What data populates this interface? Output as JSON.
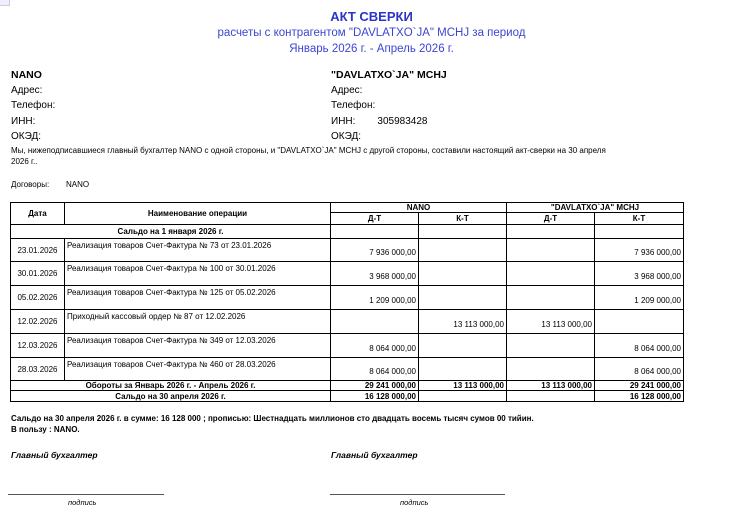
{
  "title": "АКТ СВЕРКИ",
  "subtitle1": "расчеты с контрагентом \"DAVLATXO`JA\" MCHJ за период",
  "subtitle2": "Январь 2026 г. - Апрель 2026 г.",
  "left_party": {
    "name": "NANO",
    "address": "Адрес:",
    "phone": "Телефон:",
    "inn": "ИНН:",
    "inn_value": "",
    "okzd": "ОКЭД:"
  },
  "right_party": {
    "name": "\"DAVLATXO`JA\" MCHJ",
    "address": "Адрес:",
    "phone": "Телефон:",
    "inn": "ИНН:",
    "inn_value": "305983428",
    "okzd": "ОКЭД:"
  },
  "intro_line1": "Мы, нижеподписавшиеся главный бухгалтер  NANO с одной стороны, и  \"DAVLATXO`JA\" MCHJ  с другой стороны, составили настоящий акт-сверки на 30 апреля",
  "intro_line2": "2026 г..",
  "contracts_label": "Договоры:",
  "contracts_value": "NANO",
  "table": {
    "col_date": "Дата",
    "col_name": "Наименование  операции",
    "party1": "NANO",
    "party2": "\"DAVLATXO`JA\" MCHJ",
    "dt": "Д-Т",
    "kt": "К-Т",
    "opening": "Сальдо на  1 января 2026 г.",
    "rows": [
      {
        "date": "23.01.2026",
        "desc": "Реализация товаров Счет-Фактура № 73 от 23.01.2026",
        "dt1": "7 936 000,00",
        "kt1": "",
        "dt2": "",
        "kt2": "7 936 000,00"
      },
      {
        "date": "30.01.2026",
        "desc": "Реализация товаров Счет-Фактура № 100 от 30.01.2026",
        "dt1": "3 968 000,00",
        "kt1": "",
        "dt2": "",
        "kt2": "3 968 000,00"
      },
      {
        "date": "05.02.2026",
        "desc": "Реализация товаров Счет-Фактура № 125 от 05.02.2026",
        "dt1": "1 209 000,00",
        "kt1": "",
        "dt2": "",
        "kt2": "1 209 000,00"
      },
      {
        "date": "12.02.2026",
        "desc": "Приходный кассовый ордер № 87 от 12.02.2026",
        "dt1": "",
        "kt1": "13 113 000,00",
        "dt2": "13 113 000,00",
        "kt2": ""
      },
      {
        "date": "12.03.2026",
        "desc": "Реализация товаров Счет-Фактура № 349 от 12.03.2026",
        "dt1": "8 064 000,00",
        "kt1": "",
        "dt2": "",
        "kt2": "8 064 000,00"
      },
      {
        "date": "28.03.2026",
        "desc": "Реализация товаров Счет-Фактура № 460 от 28.03.2026",
        "dt1": "8 064 000,00",
        "kt1": "",
        "dt2": "",
        "kt2": "8 064 000,00"
      }
    ],
    "turnover": {
      "label": "Обороты за Январь 2026 г. - Апрель 2026 г.",
      "dt1": "29 241 000,00",
      "kt1": "13 113 000,00",
      "dt2": "13 113 000,00",
      "kt2": "29 241 000,00"
    },
    "closing": {
      "label": "Сальдо на  30 апреля 2026 г.",
      "dt1": "16 128 000,00",
      "kt1": "",
      "dt2": "",
      "kt2": "16 128 000,00"
    }
  },
  "summary_line1": "Сальдо на 30 апреля 2026 г.   в сумме: 16 128 000 ; прописью: Шестнадцать миллионов сто двадцать восемь тысяч сумов 00 тийин.",
  "summary_line2": "В пользу : NANO.",
  "sign_left": "Главный бухгалтер",
  "sign_right": "Главный бухгалтер",
  "sign_caption": "подпись"
}
